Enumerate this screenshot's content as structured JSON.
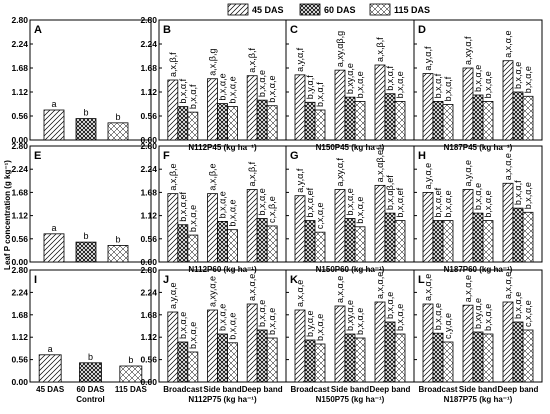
{
  "legend": [
    "45 DAS",
    "60 DAS",
    "115 DAS"
  ],
  "y_axis_title": "Leaf P concentration (g kg⁻¹)",
  "y_ticks": [
    "0.00",
    "0.56",
    "1.12",
    "1.68",
    "2.24",
    "2.80"
  ],
  "chart_data": {
    "type": "bar",
    "series_names": [
      "45 DAS",
      "60 DAS",
      "115 DAS"
    ],
    "ylim": [
      0,
      2.8
    ],
    "panel_rows": [
      {
        "control": {
          "label": "A",
          "categories": [
            ""
          ],
          "values": [
            [
              0.7,
              0.5,
              0.4
            ]
          ],
          "letters": [
            [
              "a",
              "b",
              "b"
            ]
          ]
        },
        "groups": [
          {
            "label": "B",
            "xlabel": "N112P45 (kg ha⁻¹)",
            "categories": [
              "",
              "",
              ""
            ],
            "values": [
              [
                1.4,
                0.78,
                0.65
              ],
              [
                1.43,
                0.85,
                0.78
              ],
              [
                1.5,
                0.93,
                0.8
              ]
            ],
            "letters": [
              [
                "a,x,β,f",
                "b,x,α,f",
                "b,x,α,f"
              ],
              [
                "a,x,β,g",
                "b,x,α,e",
                "b,x,α,e"
              ],
              [
                "a,x,β,f",
                "b,x,α,e",
                "b,x,α,e"
              ]
            ]
          },
          {
            "label": "C",
            "xlabel": "N150P45 (kg ha⁻¹)",
            "categories": [
              "",
              "",
              ""
            ],
            "values": [
              [
                1.52,
                0.88,
                0.7
              ],
              [
                1.63,
                1.0,
                0.9
              ],
              [
                1.75,
                1.08,
                0.9
              ]
            ],
            "letters": [
              [
                "a,y,α,f",
                "b,y,α,f",
                "b,x,α,f"
              ],
              [
                "a,xy,αβ,g",
                "b,xy,α,e",
                "b,x,α,e"
              ],
              [
                "a,x,β,f",
                "b,x,α,f",
                "b,x,α,e"
              ]
            ]
          },
          {
            "label": "D",
            "xlabel": "N187P45 (kg ha⁻¹)",
            "categories": [
              "",
              "",
              ""
            ],
            "values": [
              [
                1.55,
                0.9,
                0.83
              ],
              [
                1.68,
                1.05,
                0.9
              ],
              [
                1.85,
                1.12,
                1.02
              ]
            ],
            "letters": [
              [
                "a,y,α,f",
                "b,x,α,f",
                "b,x,α,f"
              ],
              [
                "a,xy,α,f",
                "b,x,α,e",
                "b,x,α,e"
              ],
              [
                "a,x,α,e",
                "b,x,α,e",
                "b,x,α,e"
              ]
            ]
          }
        ]
      },
      {
        "control": {
          "label": "E",
          "categories": [
            ""
          ],
          "values": [
            [
              0.68,
              0.48,
              0.4
            ]
          ],
          "letters": [
            [
              "a",
              "b",
              "b"
            ]
          ]
        },
        "groups": [
          {
            "label": "F",
            "xlabel": "N112P60 (kg ha⁻¹)",
            "categories": [
              "",
              "",
              ""
            ],
            "values": [
              [
                1.65,
                0.9,
                0.65
              ],
              [
                1.65,
                0.98,
                0.78
              ],
              [
                1.75,
                1.05,
                0.87
              ]
            ],
            "letters": [
              [
                "a,x,β,e",
                "b,x,α,ef",
                "b,x,α,e"
              ],
              [
                "a,x,β,e",
                "b,x,α,e",
                "b,x,α,e"
              ],
              [
                "a,x,β,f",
                "b,x,α,e",
                "c,x,β,e"
              ]
            ]
          },
          {
            "label": "G",
            "xlabel": "N150P60 (kg ha⁻¹)",
            "categories": [
              "",
              "",
              ""
            ],
            "values": [
              [
                1.6,
                1.0,
                0.72
              ],
              [
                1.75,
                1.05,
                0.85
              ],
              [
                1.85,
                1.18,
                1.0
              ]
            ],
            "letters": [
              [
                "a,y,α,f",
                "b,x,α,ef",
                "c,x,α,e"
              ],
              [
                "a,xy,α,f",
                "b,x,α,e",
                "b,x,α,e"
              ],
              [
                "a,x,αβ,ef",
                "b,x,αβ,ef",
                "b,x,α,ef"
              ]
            ]
          },
          {
            "label": "H",
            "xlabel": "N187P60 (kg ha⁻¹)",
            "categories": [
              "",
              "",
              ""
            ],
            "values": [
              [
                1.68,
                1.0,
                1.0
              ],
              [
                1.75,
                1.18,
                1.0
              ],
              [
                1.9,
                1.3,
                1.2
              ]
            ],
            "letters": [
              [
                "a,y,α,e",
                "b,x,α,ef",
                "b,x,α,e"
              ],
              [
                "a,y,α,e",
                "b,x,α,e",
                "b,x,α,e"
              ],
              [
                "a,x,α,e",
                "b,x,α,f",
                "b,x,α,e"
              ]
            ]
          }
        ]
      },
      {
        "control": {
          "label": "I",
          "categories": [
            "45 DAS",
            "60 DAS",
            "115 DAS"
          ],
          "single_bar_per_category": true,
          "values": [
            [
              0.68
            ],
            [
              0.48
            ],
            [
              0.4
            ]
          ],
          "letters": [
            [
              "a"
            ],
            [
              "b"
            ],
            [
              "b"
            ]
          ],
          "xlabel": "Control"
        },
        "groups": [
          {
            "label": "J",
            "xlabel": "N112P75 (kg ha⁻¹)",
            "categories": [
              "Broadcast",
              "Side band",
              "Deep band"
            ],
            "values": [
              [
                1.75,
                1.0,
                0.75
              ],
              [
                1.8,
                1.2,
                0.98
              ],
              [
                1.95,
                1.3,
                1.1
              ]
            ],
            "letters": [
              [
                "a,y,α,e",
                "b,x,α,e",
                "b,x,α,e"
              ],
              [
                "a,xy,α,e",
                "b,x,α,e",
                "b,x,α,e"
              ],
              [
                "a,x,α,e",
                "b,x,α,e",
                "b,x,α,e"
              ]
            ]
          },
          {
            "label": "K",
            "xlabel": "N150P75 (kg ha⁻¹)",
            "categories": [
              "Broadcast",
              "Side band",
              "Deep band"
            ],
            "values": [
              [
                1.8,
                1.05,
                0.95
              ],
              [
                1.9,
                1.2,
                1.1
              ],
              [
                2.0,
                1.5,
                1.2
              ]
            ],
            "letters": [
              [
                "a,x,α,e",
                "b,y,α,e",
                "b,x,α,e"
              ],
              [
                "a,x,α,e",
                "b,xy,α,e",
                "b,x,α,e"
              ],
              [
                "a,x,α,e",
                "b,x,α,e",
                "b,x,α,e"
              ]
            ]
          },
          {
            "label": "L",
            "xlabel": "N187P75 (kg ha⁻¹)",
            "categories": [
              "Broadcast",
              "Side band",
              "Deep band"
            ],
            "values": [
              [
                1.95,
                1.22,
                1.0
              ],
              [
                1.92,
                1.25,
                1.2
              ],
              [
                2.0,
                1.5,
                1.3
              ]
            ],
            "letters": [
              [
                "a,x,α,e",
                "b,x,α,e",
                "c,y,α,e"
              ],
              [
                "a,x,α,e",
                "b,xy,α,e",
                "b,x,α,e"
              ],
              [
                "a,x,α,e",
                "b,x,α,e",
                "c,x,α,e"
              ]
            ]
          }
        ]
      }
    ]
  }
}
